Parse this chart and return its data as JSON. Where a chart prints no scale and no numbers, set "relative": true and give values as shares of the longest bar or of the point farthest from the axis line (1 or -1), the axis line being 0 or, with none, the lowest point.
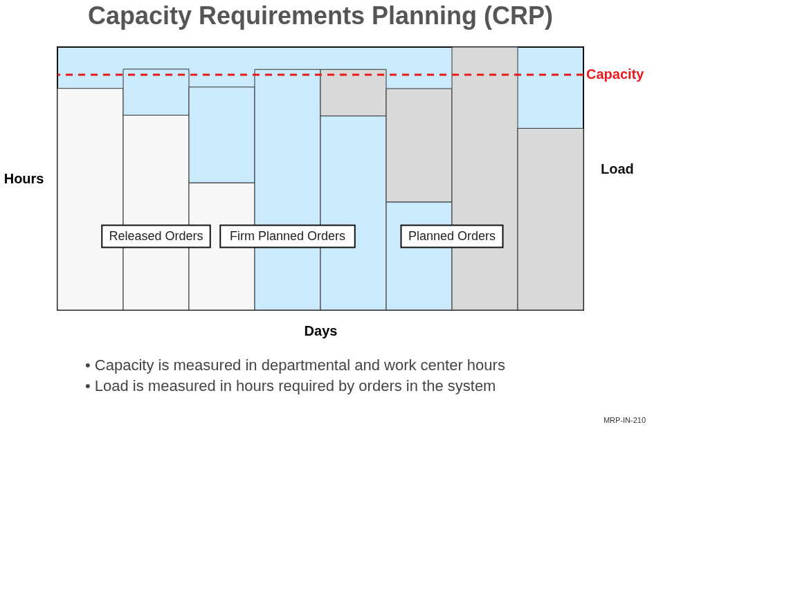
{
  "chart_data": {
    "type": "bar",
    "title": "Capacity Requirements Planning (CRP)",
    "xlabel": "Days",
    "ylabel": "Hours",
    "categories": [
      null,
      null,
      null,
      null,
      null,
      null,
      null,
      null
    ],
    "stacked": true,
    "relative": true,
    "grid": false,
    "legend": false,
    "series": [
      {
        "name": "Released Orders",
        "color": "#f7f7f7",
        "values": [
          0.843,
          0.741,
          0.484,
          null,
          null,
          null,
          null,
          null
        ]
      },
      {
        "name": "Firm Planned Orders",
        "color": "#cbeafb",
        "values": [
          null,
          0.175,
          0.364,
          0.915,
          0.738,
          0.411,
          null,
          null
        ]
      },
      {
        "name": "Planned Orders",
        "color": "#d9d9d9",
        "values": [
          null,
          null,
          null,
          null,
          0.177,
          0.431,
          1.0,
          0.691
        ]
      }
    ],
    "ref_lines": [
      {
        "axis": "y",
        "value": 0.895,
        "label": "Capacity",
        "color": "#e8191b",
        "line_style": "dashed"
      }
    ],
    "annotations": [
      "Load",
      "• Capacity is measured in departmental and work center hours",
      "• Load is measured in hours required by orders in the system",
      "MRP-IN-210"
    ]
  }
}
